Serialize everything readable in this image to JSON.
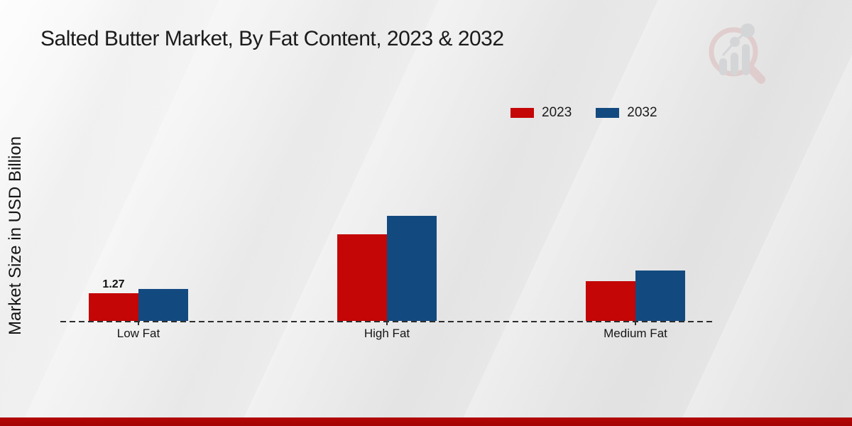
{
  "title": "Salted Butter Market, By Fat Content, 2023 & 2032",
  "y_axis": {
    "label": "Market Size in USD Billion"
  },
  "legend": {
    "position": "top-right",
    "items": [
      {
        "label": "2023",
        "color": "#c40606"
      },
      {
        "label": "2032",
        "color": "#124a80"
      }
    ]
  },
  "chart_data": {
    "type": "bar",
    "title": "Salted Butter Market, By Fat Content, 2023 & 2032",
    "categories": [
      "Low Fat",
      "High Fat",
      "Medium Fat"
    ],
    "series": [
      {
        "name": "2023",
        "color": "#c40606",
        "values": [
          1.27,
          3.97,
          1.83
        ]
      },
      {
        "name": "2032",
        "color": "#124a80",
        "values": [
          1.48,
          4.83,
          2.32
        ]
      }
    ],
    "annotations": [
      {
        "series_index": 0,
        "category_index": 0,
        "text": "1.27"
      }
    ],
    "xlabel": "",
    "ylabel": "Market Size in USD Billion",
    "ylim": [
      0,
      5.5
    ],
    "grid": false,
    "legend_position": "top-right",
    "baseline_style": "dashed",
    "y_axis_ticks_visible": false
  },
  "branding": {
    "logo_name": "magnifier-bar-chart-watermark"
  },
  "footer": {
    "stripe_color": "#b30606"
  }
}
